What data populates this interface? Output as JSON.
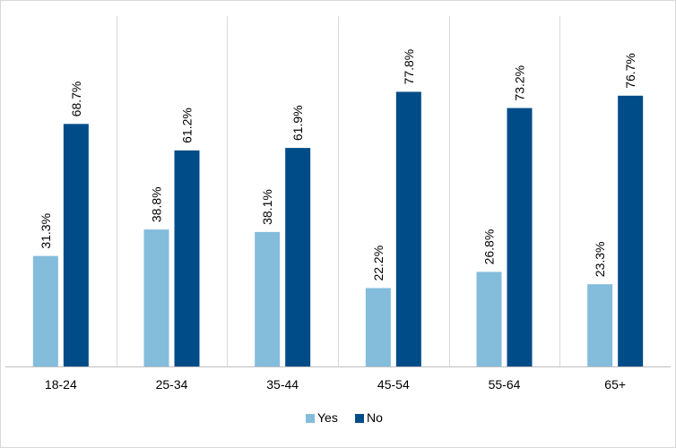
{
  "chart_data": {
    "type": "bar",
    "title": "",
    "xlabel": "",
    "ylabel": "",
    "categories": [
      "18-24",
      "25-34",
      "35-44",
      "45-54",
      "55-64",
      "65+"
    ],
    "series": [
      {
        "name": "Yes",
        "color": "#84BCDB",
        "values": [
          31.3,
          38.8,
          38.1,
          22.2,
          26.8,
          23.3
        ],
        "labels": [
          "31.3%",
          "38.8%",
          "38.1%",
          "22.2%",
          "26.8%",
          "23.3%"
        ]
      },
      {
        "name": "No",
        "color": "#004C88",
        "values": [
          68.7,
          61.2,
          61.9,
          77.8,
          73.2,
          76.7
        ],
        "labels": [
          "68.7%",
          "61.2%",
          "61.9%",
          "77.8%",
          "73.2%",
          "76.7%"
        ]
      }
    ],
    "ylim": [
      0,
      100
    ],
    "grid": "vertical-category-separators",
    "legend": "bottom-center",
    "y_axis_visible": false
  }
}
